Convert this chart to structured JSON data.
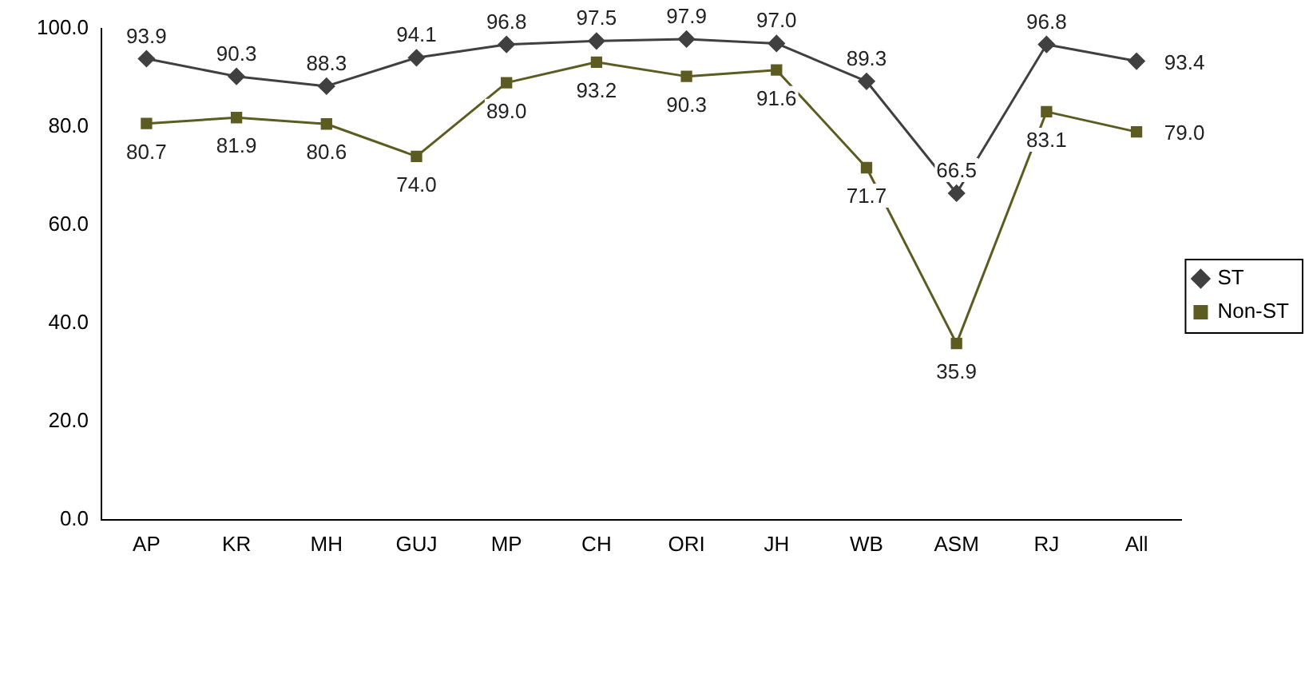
{
  "chart_data": {
    "type": "line",
    "categories": [
      "AP",
      "KR",
      "MH",
      "GUJ",
      "MP",
      "CH",
      "ORI",
      "JH",
      "WB",
      "ASM",
      "RJ",
      "All"
    ],
    "series": [
      {
        "name": "ST",
        "color": "#404040",
        "marker": "diamond",
        "values": [
          93.9,
          90.3,
          88.3,
          94.1,
          96.8,
          97.5,
          97.9,
          97.0,
          89.3,
          66.5,
          96.8,
          93.4
        ],
        "value_labels": [
          "93.9",
          "90.3",
          "88.3",
          "94.1",
          "96.8",
          "97.5",
          "97.9",
          "97.0",
          "89.3",
          "66.5",
          "96.8",
          "93.4"
        ]
      },
      {
        "name": "Non-ST",
        "color": "#5c5c22",
        "marker": "square",
        "values": [
          80.7,
          81.9,
          80.6,
          74.0,
          89.0,
          93.2,
          90.3,
          91.6,
          71.7,
          35.9,
          83.1,
          79.0
        ],
        "value_labels": [
          "80.7",
          "81.9",
          "80.6",
          "74.0",
          "89.0",
          "93.2",
          "90.3",
          "91.6",
          "71.7",
          "35.9",
          "83.1",
          "79.0"
        ]
      }
    ],
    "ylim": [
      0,
      100
    ],
    "yticks": [
      {
        "value": 0,
        "label": "0.0"
      },
      {
        "value": 20,
        "label": "20.0"
      },
      {
        "value": 40,
        "label": "40.0"
      },
      {
        "value": 60,
        "label": "60.0"
      },
      {
        "value": 80,
        "label": "80.0"
      },
      {
        "value": 100,
        "label": "100.0"
      }
    ],
    "grid": false,
    "legend": "right",
    "line_style": "solid"
  }
}
